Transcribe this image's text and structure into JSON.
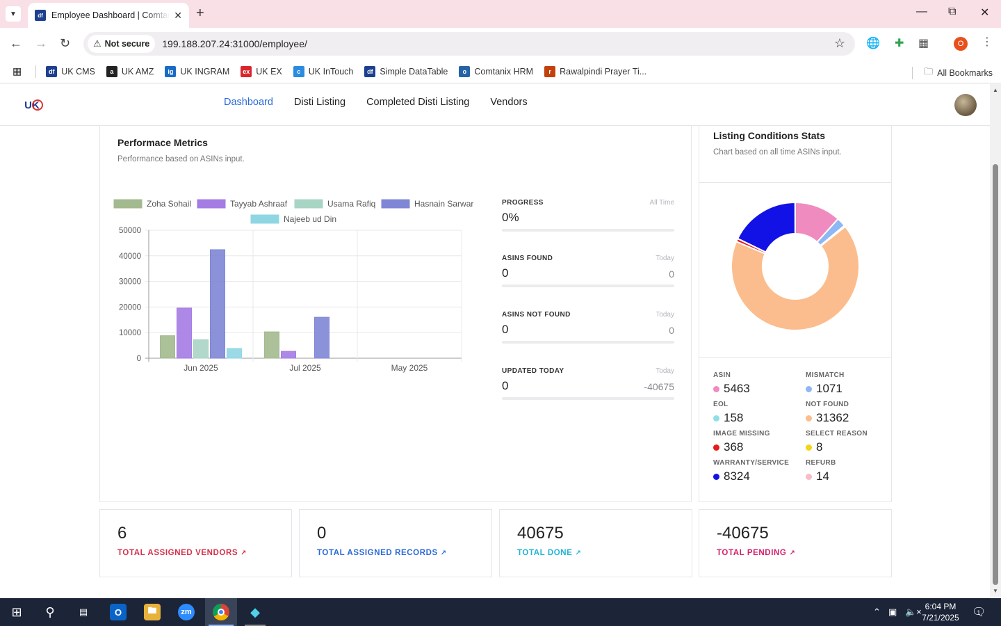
{
  "browser": {
    "tab_title": "Employee Dashboard | Comtanix",
    "tab_favicon": "df",
    "security_label": "Not secure",
    "url": "199.188.207.24:31000/employee/",
    "profile_initial": "O",
    "bookmarks": [
      {
        "label": "UK CMS",
        "icon": "df",
        "color": "#1d3f8f"
      },
      {
        "label": "UK AMZ",
        "icon": "a",
        "color": "#222222"
      },
      {
        "label": "UK INGRAM",
        "icon": "ig",
        "color": "#1a6bc4"
      },
      {
        "label": "UK EX",
        "icon": "ex",
        "color": "#d9262c"
      },
      {
        "label": "UK InTouch",
        "icon": "c",
        "color": "#2b8be0"
      },
      {
        "label": "Simple DataTable",
        "icon": "df",
        "color": "#1d3f8f"
      },
      {
        "label": "Comtanix HRM",
        "icon": "o",
        "color": "#2563a6"
      },
      {
        "label": "Rawalpindi Prayer Ti...",
        "icon": "r",
        "color": "#c2410c"
      }
    ],
    "all_bookmarks": "All Bookmarks"
  },
  "app": {
    "logo": "UK",
    "nav": [
      {
        "label": "Dashboard",
        "active": true
      },
      {
        "label": "Disti Listing",
        "active": false
      },
      {
        "label": "Completed Disti Listing",
        "active": false
      },
      {
        "label": "Vendors",
        "active": false
      }
    ]
  },
  "performance": {
    "title": "Performace Metrics",
    "subtitle": "Performance based on ASINs input.",
    "metrics": [
      {
        "label": "PROGRESS",
        "when": "All Time",
        "value": "0%",
        "delta": ""
      },
      {
        "label": "ASINS FOUND",
        "when": "Today",
        "value": "0",
        "delta": "0"
      },
      {
        "label": "ASINS NOT FOUND",
        "when": "Today",
        "value": "0",
        "delta": "0"
      },
      {
        "label": "UPDATED TODAY",
        "when": "Today",
        "value": "0",
        "delta": "-40675"
      }
    ]
  },
  "chart_data": [
    {
      "type": "bar",
      "categories": [
        "Jun 2025",
        "Jul 2025",
        "May 2025"
      ],
      "ylim": [
        0,
        50000
      ],
      "yticks": [
        0,
        10000,
        20000,
        30000,
        40000,
        50000
      ],
      "series": [
        {
          "name": "Zoha Sohail",
          "color": "#a3b98f",
          "values": [
            8800,
            10300,
            0
          ]
        },
        {
          "name": "Tayyab Ashraaf",
          "color": "#a57be4",
          "values": [
            19600,
            2700,
            0
          ]
        },
        {
          "name": "Usama Rafiq",
          "color": "#a8d4c4",
          "values": [
            7200,
            0,
            0
          ]
        },
        {
          "name": "Hasnain Sarwar",
          "color": "#7f86d6",
          "values": [
            42400,
            16000,
            0
          ]
        },
        {
          "name": "Najeeb ud Din",
          "color": "#8fd6e3",
          "values": [
            3800,
            0,
            0
          ]
        }
      ]
    },
    {
      "type": "pie",
      "labels": [
        "ASIN",
        "MISMATCH",
        "EOL",
        "NOT FOUND",
        "IMAGE MISSING",
        "SELECT REASON",
        "WARRANTY/SERVICE",
        "REFURB"
      ],
      "values": [
        5463,
        1071,
        158,
        31362,
        368,
        8,
        8324,
        14
      ],
      "colors": [
        "#f08bc0",
        "#8db8f3",
        "#8ee0e6",
        "#fbbd8d",
        "#e41e1e",
        "#f2d51b",
        "#1212e6",
        "#f7bcc5"
      ]
    }
  ],
  "listing": {
    "title": "Listing Conditions Stats",
    "subtitle": "Chart based on all time ASINs input.",
    "stats": [
      {
        "label": "ASIN",
        "value": "5463",
        "color": "#f08bc0"
      },
      {
        "label": "MISMATCH",
        "value": "1071",
        "color": "#8db8f3"
      },
      {
        "label": "EOL",
        "value": "158",
        "color": "#8ee0e6"
      },
      {
        "label": "NOT FOUND",
        "value": "31362",
        "color": "#fbbd8d"
      },
      {
        "label": "IMAGE MISSING",
        "value": "368",
        "color": "#e41e1e"
      },
      {
        "label": "SELECT REASON",
        "value": "8",
        "color": "#f2d51b"
      },
      {
        "label": "WARRANTY/SERVICE",
        "value": "8324",
        "color": "#1212e6"
      },
      {
        "label": "REFURB",
        "value": "14",
        "color": "#f7bcc5"
      }
    ]
  },
  "totals": [
    {
      "value": "6",
      "label": "TOTAL ASSIGNED VENDORS",
      "color": "#d6304a"
    },
    {
      "value": "0",
      "label": "TOTAL ASSIGNED RECORDS",
      "color": "#2a6ad8"
    },
    {
      "value": "40675",
      "label": "TOTAL DONE",
      "color": "#1fb5d6"
    },
    {
      "value": "-40675",
      "label": "TOTAL PENDING",
      "color": "#d61f69"
    }
  ],
  "taskbar": {
    "time": "6:04 PM",
    "date": "7/21/2025",
    "notifications": "1"
  }
}
